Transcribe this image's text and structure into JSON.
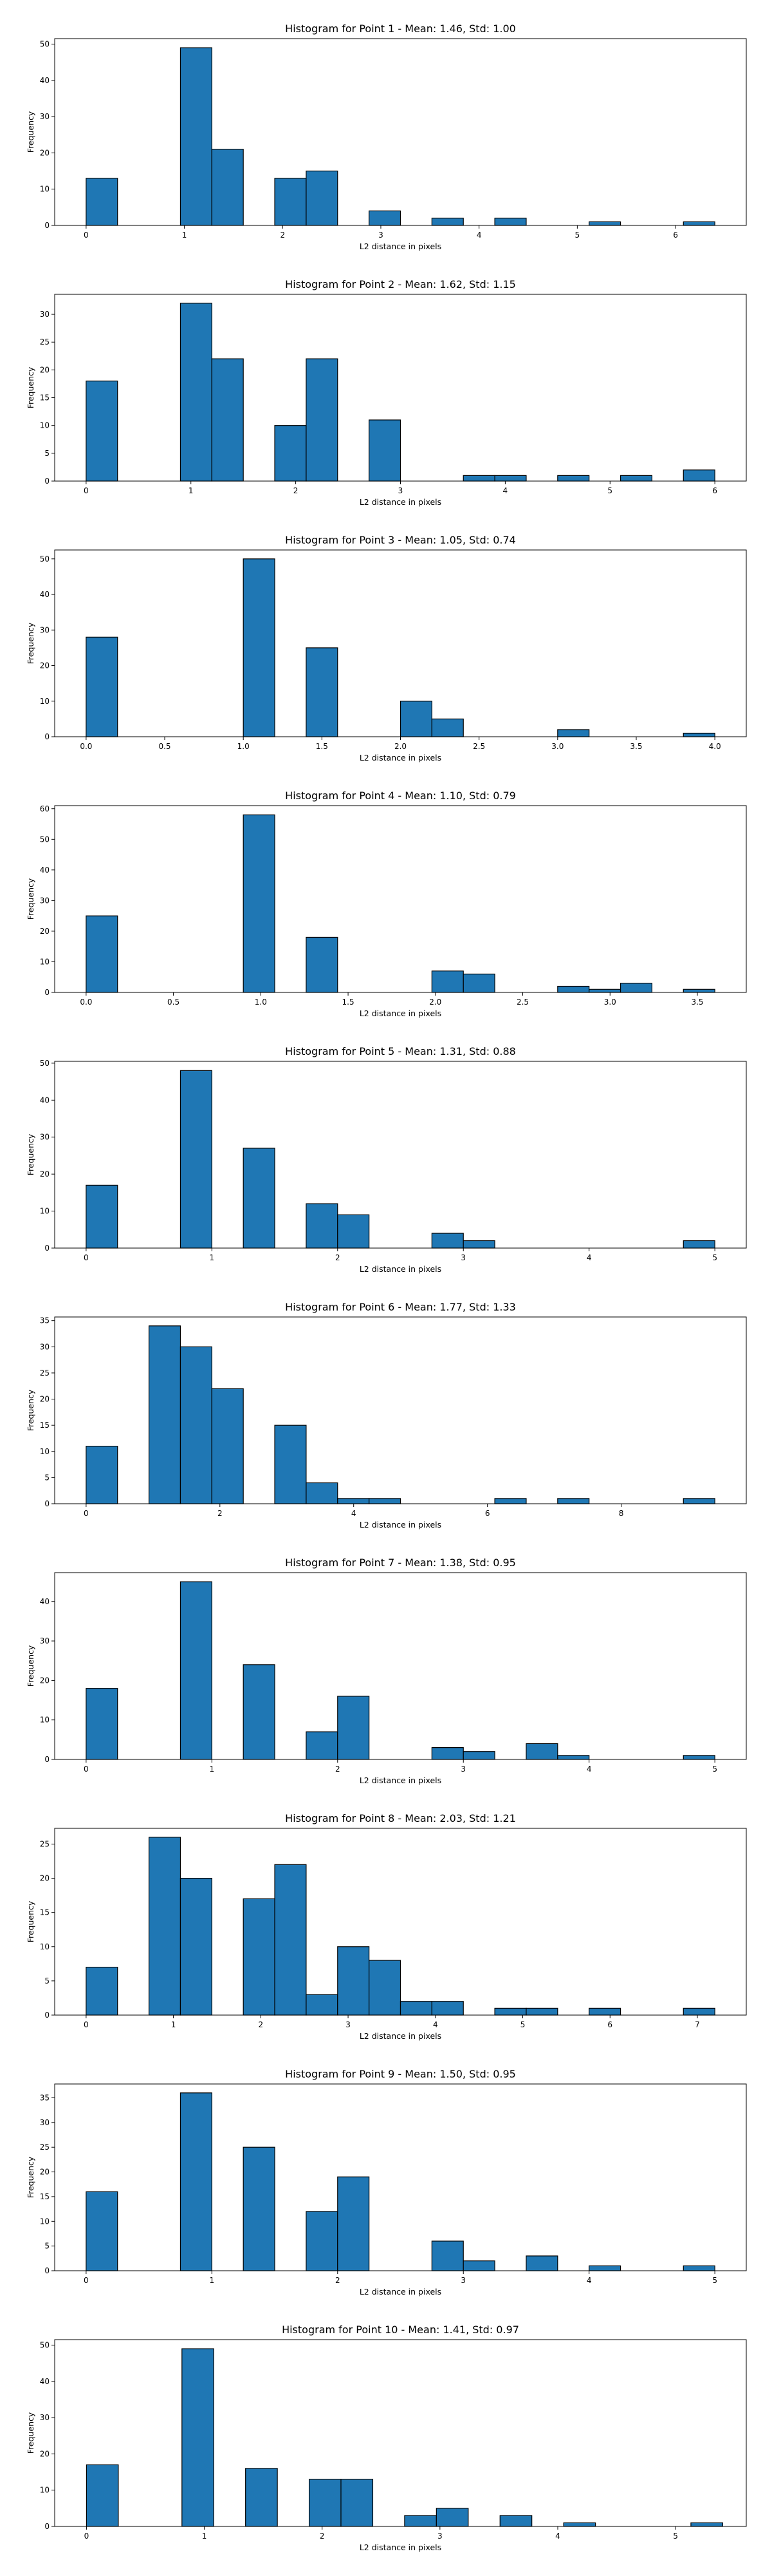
{
  "chart_data": [
    {
      "type": "bar",
      "title": "Histogram for Point 1 - Mean: 1.46, Std: 1.00",
      "xlabel": "L2 distance in pixels",
      "ylabel": "Frequency",
      "xlim": [
        -0.32,
        6.72
      ],
      "ylim": [
        0,
        51.5
      ],
      "xticks": [
        0,
        1,
        2,
        3,
        4,
        5,
        6
      ],
      "xtick_labels": [
        "0",
        "1",
        "2",
        "3",
        "4",
        "5",
        "6"
      ],
      "yticks": [
        0,
        10,
        20,
        30,
        40,
        50
      ],
      "ytick_labels": [
        "0",
        "10",
        "20",
        "30",
        "40",
        "50"
      ],
      "bin_width": 0.32,
      "bins": [
        {
          "x": 0,
          "count": 13
        },
        {
          "x": 0.96,
          "count": 49
        },
        {
          "x": 1.28,
          "count": 21
        },
        {
          "x": 1.92,
          "count": 13
        },
        {
          "x": 2.24,
          "count": 15
        },
        {
          "x": 2.88,
          "count": 4
        },
        {
          "x": 3.52,
          "count": 2
        },
        {
          "x": 4.16,
          "count": 2
        },
        {
          "x": 5.12,
          "count": 1
        },
        {
          "x": 6.08,
          "count": 1
        }
      ]
    },
    {
      "type": "bar",
      "title": "Histogram for Point 2 - Mean: 1.62, Std: 1.15",
      "xlabel": "L2 distance in pixels",
      "ylabel": "Frequency",
      "xlim": [
        -0.3,
        6.3
      ],
      "ylim": [
        0,
        33.6
      ],
      "xticks": [
        0,
        1,
        2,
        3,
        4,
        5,
        6
      ],
      "xtick_labels": [
        "0",
        "1",
        "2",
        "3",
        "4",
        "5",
        "6"
      ],
      "yticks": [
        0,
        5,
        10,
        15,
        20,
        25,
        30
      ],
      "ytick_labels": [
        "0",
        "5",
        "10",
        "15",
        "20",
        "25",
        "30"
      ],
      "bin_width": 0.3,
      "bins": [
        {
          "x": 0,
          "count": 18
        },
        {
          "x": 0.9,
          "count": 32
        },
        {
          "x": 1.2,
          "count": 22
        },
        {
          "x": 1.8,
          "count": 10
        },
        {
          "x": 2.1,
          "count": 22
        },
        {
          "x": 2.7,
          "count": 11
        },
        {
          "x": 3.6,
          "count": 1
        },
        {
          "x": 3.9,
          "count": 1
        },
        {
          "x": 4.5,
          "count": 1
        },
        {
          "x": 5.1,
          "count": 1
        },
        {
          "x": 5.7,
          "count": 2
        }
      ]
    },
    {
      "type": "bar",
      "title": "Histogram for Point 3 - Mean: 1.05, Std: 0.74",
      "xlabel": "L2 distance in pixels",
      "ylabel": "Frequency",
      "xlim": [
        -0.2,
        4.2
      ],
      "ylim": [
        0,
        52.5
      ],
      "xticks": [
        0,
        0.5,
        1,
        1.5,
        2,
        2.5,
        3,
        3.5,
        4
      ],
      "xtick_labels": [
        "0.0",
        "0.5",
        "1.0",
        "1.5",
        "2.0",
        "2.5",
        "3.0",
        "3.5",
        "4.0"
      ],
      "yticks": [
        0,
        10,
        20,
        30,
        40,
        50
      ],
      "ytick_labels": [
        "0",
        "10",
        "20",
        "30",
        "40",
        "50"
      ],
      "bin_width": 0.2,
      "bins": [
        {
          "x": 0,
          "count": 28
        },
        {
          "x": 1,
          "count": 50
        },
        {
          "x": 1.4,
          "count": 25
        },
        {
          "x": 2,
          "count": 10
        },
        {
          "x": 2.2,
          "count": 5
        },
        {
          "x": 3,
          "count": 2
        },
        {
          "x": 3.8,
          "count": 1
        }
      ]
    },
    {
      "type": "bar",
      "title": "Histogram for Point 4 - Mean: 1.10, Std: 0.79",
      "xlabel": "L2 distance in pixels",
      "ylabel": "Frequency",
      "xlim": [
        -0.18,
        3.78
      ],
      "ylim": [
        0,
        61
      ],
      "xticks": [
        0,
        0.5,
        1,
        1.5,
        2,
        2.5,
        3,
        3.5
      ],
      "xtick_labels": [
        "0.0",
        "0.5",
        "1.0",
        "1.5",
        "2.0",
        "2.5",
        "3.0",
        "3.5"
      ],
      "yticks": [
        0,
        10,
        20,
        30,
        40,
        50,
        60
      ],
      "ytick_labels": [
        "0",
        "10",
        "20",
        "30",
        "40",
        "50",
        "60"
      ],
      "bin_width": 0.18,
      "bins": [
        {
          "x": 0,
          "count": 25
        },
        {
          "x": 0.9,
          "count": 58
        },
        {
          "x": 1.26,
          "count": 18
        },
        {
          "x": 1.98,
          "count": 7
        },
        {
          "x": 2.16,
          "count": 6
        },
        {
          "x": 2.7,
          "count": 2
        },
        {
          "x": 2.88,
          "count": 1
        },
        {
          "x": 3.06,
          "count": 3
        },
        {
          "x": 3.42,
          "count": 1
        }
      ]
    },
    {
      "type": "bar",
      "title": "Histogram for Point 5 - Mean: 1.31, Std: 0.88",
      "xlabel": "L2 distance in pixels",
      "ylabel": "Frequency",
      "xlim": [
        -0.25,
        5.25
      ],
      "ylim": [
        0,
        50.5
      ],
      "xticks": [
        0,
        1,
        2,
        3,
        4,
        5
      ],
      "xtick_labels": [
        "0",
        "1",
        "2",
        "3",
        "4",
        "5"
      ],
      "yticks": [
        0,
        10,
        20,
        30,
        40,
        50
      ],
      "ytick_labels": [
        "0",
        "10",
        "20",
        "30",
        "40",
        "50"
      ],
      "bin_width": 0.25,
      "bins": [
        {
          "x": 0,
          "count": 17
        },
        {
          "x": 0.75,
          "count": 48
        },
        {
          "x": 1.25,
          "count": 27
        },
        {
          "x": 1.75,
          "count": 12
        },
        {
          "x": 2,
          "count": 9
        },
        {
          "x": 2.75,
          "count": 4
        },
        {
          "x": 3,
          "count": 2
        },
        {
          "x": 4.75,
          "count": 2
        }
      ]
    },
    {
      "type": "bar",
      "title": "Histogram for Point 6 - Mean: 1.77, Std: 1.33",
      "xlabel": "L2 distance in pixels",
      "ylabel": "Frequency",
      "xlim": [
        -0.47,
        9.87
      ],
      "ylim": [
        0,
        35.7
      ],
      "xticks": [
        0,
        2,
        4,
        6,
        8
      ],
      "xtick_labels": [
        "0",
        "2",
        "4",
        "6",
        "8"
      ],
      "yticks": [
        0,
        5,
        10,
        15,
        20,
        25,
        30,
        35
      ],
      "ytick_labels": [
        "0",
        "5",
        "10",
        "15",
        "20",
        "25",
        "30",
        "35"
      ],
      "bin_width": 0.47,
      "bins": [
        {
          "x": 0,
          "count": 11
        },
        {
          "x": 0.94,
          "count": 34
        },
        {
          "x": 1.41,
          "count": 30
        },
        {
          "x": 1.88,
          "count": 22
        },
        {
          "x": 2.82,
          "count": 15
        },
        {
          "x": 3.29,
          "count": 4
        },
        {
          "x": 3.76,
          "count": 1
        },
        {
          "x": 4.23,
          "count": 1
        },
        {
          "x": 6.11,
          "count": 1
        },
        {
          "x": 7.05,
          "count": 1
        },
        {
          "x": 8.93,
          "count": 1
        }
      ]
    },
    {
      "type": "bar",
      "title": "Histogram for Point 7 - Mean: 1.38, Std: 0.95",
      "xlabel": "L2 distance in pixels",
      "ylabel": "Frequency",
      "xlim": [
        -0.25,
        5.25
      ],
      "ylim": [
        0,
        47.3
      ],
      "xticks": [
        0,
        1,
        2,
        3,
        4,
        5
      ],
      "xtick_labels": [
        "0",
        "1",
        "2",
        "3",
        "4",
        "5"
      ],
      "yticks": [
        0,
        10,
        20,
        30,
        40
      ],
      "ytick_labels": [
        "0",
        "10",
        "20",
        "30",
        "40"
      ],
      "bin_width": 0.25,
      "bins": [
        {
          "x": 0,
          "count": 18
        },
        {
          "x": 0.75,
          "count": 45
        },
        {
          "x": 1.25,
          "count": 24
        },
        {
          "x": 1.75,
          "count": 7
        },
        {
          "x": 2,
          "count": 16
        },
        {
          "x": 2.75,
          "count": 3
        },
        {
          "x": 3,
          "count": 2
        },
        {
          "x": 3.5,
          "count": 4
        },
        {
          "x": 3.75,
          "count": 1
        },
        {
          "x": 4.75,
          "count": 1
        }
      ]
    },
    {
      "type": "bar",
      "title": "Histogram for Point 8 - Mean: 2.03, Std: 1.21",
      "xlabel": "L2 distance in pixels",
      "ylabel": "Frequency",
      "xlim": [
        -0.36,
        7.56
      ],
      "ylim": [
        0,
        27.3
      ],
      "xticks": [
        0,
        1,
        2,
        3,
        4,
        5,
        6,
        7
      ],
      "xtick_labels": [
        "0",
        "1",
        "2",
        "3",
        "4",
        "5",
        "6",
        "7"
      ],
      "yticks": [
        0,
        5,
        10,
        15,
        20,
        25
      ],
      "ytick_labels": [
        "0",
        "5",
        "10",
        "15",
        "20",
        "25"
      ],
      "bin_width": 0.36,
      "bins": [
        {
          "x": 0,
          "count": 7
        },
        {
          "x": 0.72,
          "count": 26
        },
        {
          "x": 1.08,
          "count": 20
        },
        {
          "x": 1.8,
          "count": 17
        },
        {
          "x": 2.16,
          "count": 22
        },
        {
          "x": 2.52,
          "count": 3
        },
        {
          "x": 2.88,
          "count": 10
        },
        {
          "x": 3.24,
          "count": 8
        },
        {
          "x": 3.6,
          "count": 2
        },
        {
          "x": 3.96,
          "count": 2
        },
        {
          "x": 4.68,
          "count": 1
        },
        {
          "x": 5.04,
          "count": 1
        },
        {
          "x": 5.76,
          "count": 1
        },
        {
          "x": 6.84,
          "count": 1
        }
      ]
    },
    {
      "type": "bar",
      "title": "Histogram for Point 9 - Mean: 1.50, Std: 0.95",
      "xlabel": "L2 distance in pixels",
      "ylabel": "Frequency",
      "xlim": [
        -0.25,
        5.25
      ],
      "ylim": [
        0,
        37.8
      ],
      "xticks": [
        0,
        1,
        2,
        3,
        4,
        5
      ],
      "xtick_labels": [
        "0",
        "1",
        "2",
        "3",
        "4",
        "5"
      ],
      "yticks": [
        0,
        5,
        10,
        15,
        20,
        25,
        30,
        35
      ],
      "ytick_labels": [
        "0",
        "5",
        "10",
        "15",
        "20",
        "25",
        "30",
        "35"
      ],
      "bin_width": 0.25,
      "bins": [
        {
          "x": 0,
          "count": 16
        },
        {
          "x": 0.75,
          "count": 36
        },
        {
          "x": 1.25,
          "count": 25
        },
        {
          "x": 1.75,
          "count": 12
        },
        {
          "x": 2,
          "count": 19
        },
        {
          "x": 2.75,
          "count": 6
        },
        {
          "x": 3,
          "count": 2
        },
        {
          "x": 3.5,
          "count": 3
        },
        {
          "x": 4,
          "count": 1
        },
        {
          "x": 4.75,
          "count": 1
        }
      ]
    },
    {
      "type": "bar",
      "title": "Histogram for Point 10 - Mean: 1.41, Std: 0.97",
      "xlabel": "L2 distance in pixels",
      "ylabel": "Frequency",
      "xlim": [
        -0.27,
        5.6
      ],
      "ylim": [
        0,
        51.5
      ],
      "xticks": [
        0,
        1,
        2,
        3,
        4,
        5
      ],
      "xtick_labels": [
        "0",
        "1",
        "2",
        "3",
        "4",
        "5"
      ],
      "yticks": [
        0,
        10,
        20,
        30,
        40,
        50
      ],
      "ytick_labels": [
        "0",
        "10",
        "20",
        "30",
        "40",
        "50"
      ],
      "bin_width": 0.27,
      "bins": [
        {
          "x": 0,
          "count": 17
        },
        {
          "x": 0.81,
          "count": 49
        },
        {
          "x": 1.35,
          "count": 16
        },
        {
          "x": 1.89,
          "count": 13
        },
        {
          "x": 2.16,
          "count": 13
        },
        {
          "x": 2.7,
          "count": 3
        },
        {
          "x": 2.97,
          "count": 5
        },
        {
          "x": 3.51,
          "count": 3
        },
        {
          "x": 4.05,
          "count": 1
        },
        {
          "x": 5.13,
          "count": 1
        }
      ]
    }
  ]
}
